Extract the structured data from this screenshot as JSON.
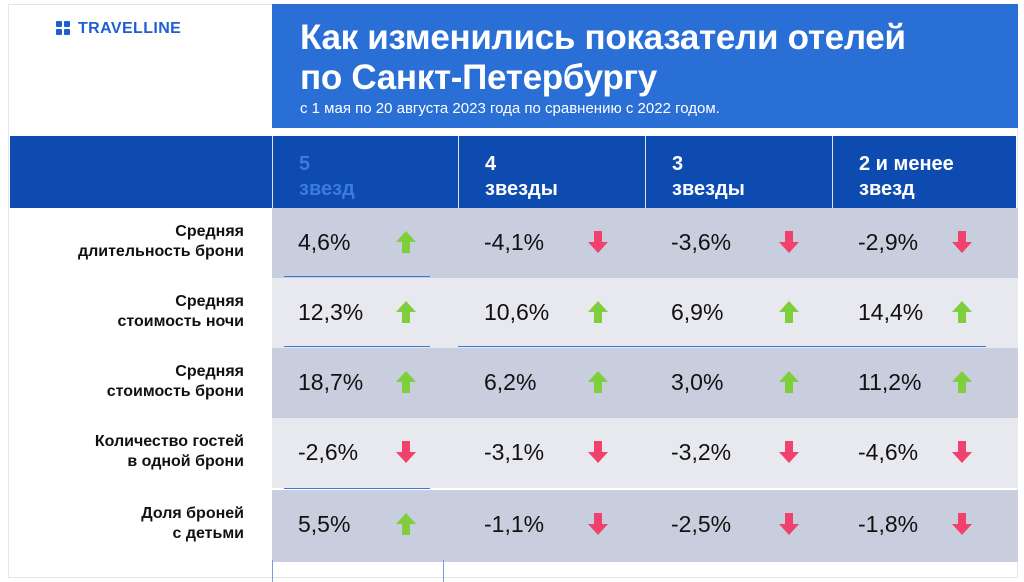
{
  "brand": {
    "name": "TRAVELLINE",
    "logo_icon": "grid-logo-icon"
  },
  "header": {
    "title_line1": "Как изменились показатели отелей",
    "title_line2": "по Санкт-Петербургу",
    "subtitle": "с 1 мая по 20 августа 2023 года по сравнению с 2022 годом."
  },
  "columns": [
    {
      "line1": "5",
      "line2": "звезд"
    },
    {
      "line1": "4",
      "line2": "звезды"
    },
    {
      "line1": "3",
      "line2": "звезды"
    },
    {
      "line1": "2 и менее",
      "line2": "звезд"
    }
  ],
  "rows": [
    {
      "line1": "Средняя",
      "line2": "длительность брони",
      "values": [
        {
          "text": "4,6%",
          "trend": "up"
        },
        {
          "text": "-4,1%",
          "trend": "down"
        },
        {
          "text": "-3,6%",
          "trend": "down"
        },
        {
          "text": "-2,9%",
          "trend": "down"
        }
      ]
    },
    {
      "line1": "Средняя",
      "line2": "стоимость ночи",
      "values": [
        {
          "text": "12,3%",
          "trend": "up"
        },
        {
          "text": "10,6%",
          "trend": "up"
        },
        {
          "text": "6,9%",
          "trend": "up"
        },
        {
          "text": "14,4%",
          "trend": "up"
        }
      ]
    },
    {
      "line1": "Средняя",
      "line2": "стоимость брони",
      "values": [
        {
          "text": "18,7%",
          "trend": "up"
        },
        {
          "text": "6,2%",
          "trend": "up"
        },
        {
          "text": "3,0%",
          "trend": "up"
        },
        {
          "text": "11,2%",
          "trend": "up"
        }
      ]
    },
    {
      "line1": "Количество гостей",
      "line2": "в одной брони",
      "values": [
        {
          "text": "-2,6%",
          "trend": "down"
        },
        {
          "text": "-3,1%",
          "trend": "down"
        },
        {
          "text": "-3,2%",
          "trend": "down"
        },
        {
          "text": "-4,6%",
          "trend": "down"
        }
      ]
    },
    {
      "line1": "Доля броней",
      "line2": "с детьми",
      "values": [
        {
          "text": "5,5%",
          "trend": "up"
        },
        {
          "text": "-1,1%",
          "trend": "down"
        },
        {
          "text": "-2,5%",
          "trend": "down"
        },
        {
          "text": "-1,8%",
          "trend": "down"
        }
      ]
    }
  ],
  "colors": {
    "up": "#7fce3c",
    "down": "#f0426c",
    "header_blue": "#2a6fd6",
    "table_head": "#0d4bb0"
  },
  "icons": {
    "up": "arrow-up-icon",
    "down": "arrow-down-icon"
  }
}
